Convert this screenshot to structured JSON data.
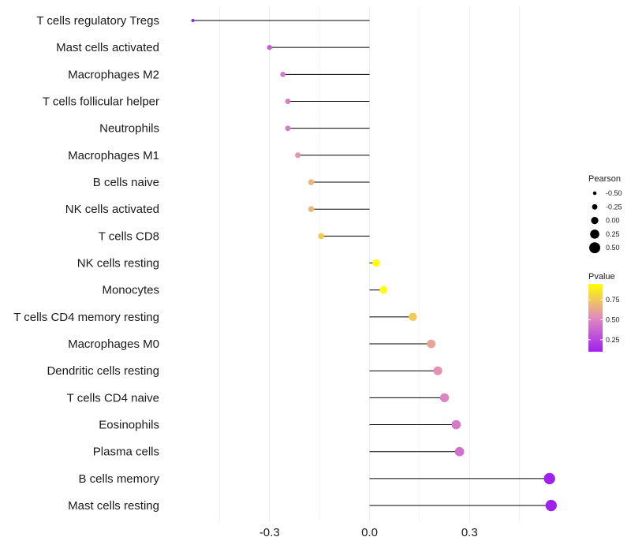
{
  "chart_data": {
    "type": "lollipop",
    "categories": [
      "T cells regulatory  Tregs",
      "Mast cells activated",
      "Macrophages M2",
      "T cells follicular helper",
      "Neutrophils",
      "Macrophages M1",
      "B cells naive",
      "NK cells activated",
      "T cells CD8",
      "NK cells resting",
      "Monocytes",
      "T cells CD4 memory resting",
      "Macrophages M0",
      "Dendritic cells resting",
      "T cells CD4 naive",
      "Eosinophils",
      "Plasma cells",
      "B cells memory",
      "Mast cells resting"
    ],
    "values": [
      -0.53,
      -0.3,
      -0.26,
      -0.245,
      -0.245,
      -0.215,
      -0.175,
      -0.175,
      -0.145,
      0.02,
      0.042,
      0.13,
      0.185,
      0.205,
      0.225,
      0.26,
      0.27,
      0.54,
      0.545
    ],
    "pvalues": [
      0.1,
      0.35,
      0.45,
      0.47,
      0.47,
      0.57,
      0.68,
      0.68,
      0.76,
      0.98,
      0.96,
      0.76,
      0.62,
      0.55,
      0.5,
      0.45,
      0.42,
      0.05,
      0.05
    ],
    "xlim": [
      -0.6,
      0.6
    ],
    "x_ticks": [
      -0.3,
      0.0,
      0.3
    ],
    "x_tick_labels": [
      "-0.3",
      "0.0",
      "0.3"
    ],
    "grid": true,
    "size_legend": {
      "title": "Pearson",
      "values": [
        -0.5,
        -0.25,
        0.0,
        0.25,
        0.5
      ],
      "labels": [
        "-0.50",
        "-0.25",
        "0.00",
        "0.25",
        "0.50"
      ]
    },
    "color_legend": {
      "title": "Pvalue",
      "range": [
        0.1,
        0.95
      ],
      "ticks": [
        0.75,
        0.5,
        0.25
      ],
      "tick_labels": [
        "0.75",
        "0.50",
        "0.25"
      ],
      "low_color": "#A020F0",
      "mid_color": "#E18ABF",
      "high_color": "#FFFF00"
    }
  }
}
